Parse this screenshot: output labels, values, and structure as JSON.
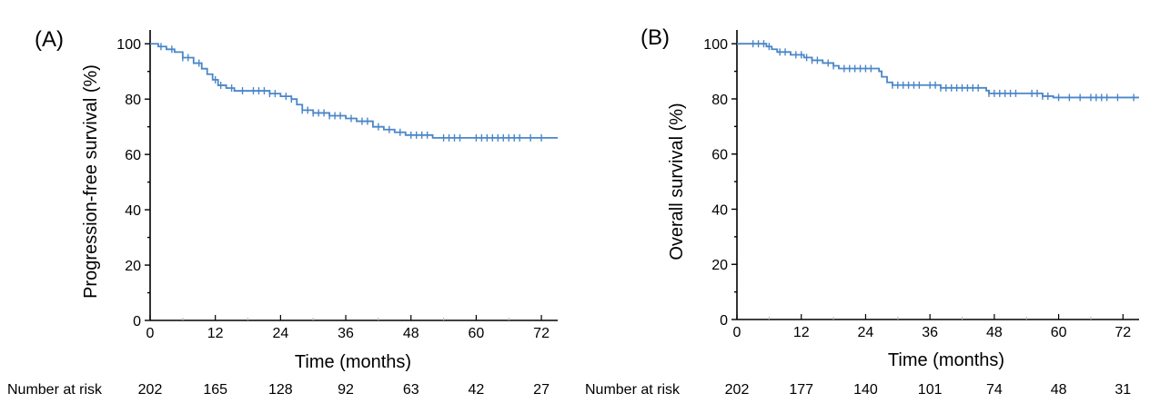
{
  "chart_data": [
    {
      "type": "line",
      "panel_label": "(A)",
      "xlabel": "Time (months)",
      "ylabel": "Progression-free survival (%)",
      "xlim": [
        0,
        75
      ],
      "ylim": [
        0,
        105
      ],
      "xticks": [
        0,
        12,
        24,
        36,
        48,
        60,
        72
      ],
      "yticks": [
        0,
        20,
        40,
        60,
        80,
        100
      ],
      "series": [
        {
          "name": "Progression-free survival",
          "color": "#4a86c8",
          "steps": [
            [
              0,
              100
            ],
            [
              1.5,
              99
            ],
            [
              3,
              98
            ],
            [
              4.5,
              97
            ],
            [
              6,
              95
            ],
            [
              8,
              93
            ],
            [
              9.5,
              91
            ],
            [
              10.5,
              89
            ],
            [
              11.5,
              87
            ],
            [
              12.5,
              85
            ],
            [
              14,
              84
            ],
            [
              15.5,
              83
            ],
            [
              22,
              82
            ],
            [
              24,
              81
            ],
            [
              26,
              80
            ],
            [
              27,
              78
            ],
            [
              28,
              76
            ],
            [
              30,
              75
            ],
            [
              33,
              74
            ],
            [
              36,
              73
            ],
            [
              38,
              72
            ],
            [
              41,
              70
            ],
            [
              43,
              69
            ],
            [
              45,
              68
            ],
            [
              47,
              67
            ],
            [
              52,
              66
            ],
            [
              75,
              66
            ]
          ],
          "censor_x": [
            2,
            4,
            6,
            7,
            9,
            12,
            13,
            15,
            17,
            19,
            20,
            21,
            22,
            23,
            25,
            26,
            28,
            29,
            30,
            31,
            32,
            33,
            34,
            35,
            37,
            39,
            40,
            42,
            44,
            46,
            48,
            49,
            50,
            51,
            54,
            55,
            56,
            57,
            60,
            61,
            62,
            63,
            64,
            65,
            66,
            67,
            68,
            70,
            72
          ]
        }
      ],
      "risk_label": "Number at risk",
      "risk_values": [
        "202",
        "165",
        "128",
        "92",
        "63",
        "42",
        "27"
      ]
    },
    {
      "type": "line",
      "panel_label": "(B)",
      "xlabel": "Time (months)",
      "ylabel": "Overall survival (%)",
      "xlim": [
        0,
        75
      ],
      "ylim": [
        0,
        105
      ],
      "xticks": [
        0,
        12,
        24,
        36,
        48,
        60,
        72
      ],
      "yticks": [
        0,
        20,
        40,
        60,
        80,
        100
      ],
      "series": [
        {
          "name": "Overall survival",
          "color": "#4a86c8",
          "steps": [
            [
              0,
              100
            ],
            [
              5.5,
              99
            ],
            [
              6.5,
              98
            ],
            [
              7.5,
              97
            ],
            [
              10,
              96
            ],
            [
              12.5,
              95
            ],
            [
              14,
              94
            ],
            [
              16,
              93
            ],
            [
              18,
              92
            ],
            [
              19,
              91
            ],
            [
              26.5,
              90
            ],
            [
              27,
              88
            ],
            [
              28,
              86
            ],
            [
              29,
              85
            ],
            [
              38,
              84
            ],
            [
              46.5,
              83
            ],
            [
              47,
              82
            ],
            [
              57,
              81
            ],
            [
              59,
              80.5
            ],
            [
              75,
              80.5
            ]
          ],
          "censor_x": [
            3,
            4,
            5,
            6,
            8,
            9,
            11,
            12,
            13,
            14,
            15,
            17,
            18,
            20,
            21,
            22,
            23,
            24,
            25,
            29,
            30,
            31,
            32,
            33,
            34,
            36,
            37,
            38,
            39,
            40,
            41,
            42,
            43,
            44,
            45,
            47,
            48,
            49,
            50,
            51,
            52,
            55,
            56,
            57,
            58,
            60,
            62,
            64,
            66,
            67,
            68,
            69,
            71,
            74
          ]
        }
      ],
      "risk_label": "Number at risk",
      "risk_values": [
        "202",
        "177",
        "140",
        "101",
        "74",
        "48",
        "31"
      ]
    }
  ]
}
